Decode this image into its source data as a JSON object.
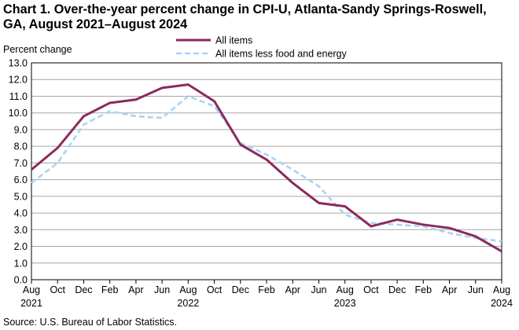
{
  "chart_data": {
    "type": "line",
    "title_line1": "Chart 1. Over-the-year percent change in CPI-U, Atlanta-Sandy Springs-Roswell,",
    "title_line2": "GA, August 2021–August 2024",
    "ylabel": "Percent change",
    "xlabel": "",
    "ylim": [
      0,
      13
    ],
    "yticks": [
      "0.0",
      "1.0",
      "2.0",
      "3.0",
      "4.0",
      "5.0",
      "6.0",
      "7.0",
      "8.0",
      "9.0",
      "10.0",
      "11.0",
      "12.0",
      "13.0"
    ],
    "xtick_labels": [
      "Aug",
      "Oct",
      "Dec",
      "Feb",
      "Apr",
      "Jun",
      "Aug",
      "Oct",
      "Dec",
      "Feb",
      "Apr",
      "Jun",
      "Aug",
      "Oct",
      "Dec",
      "Feb",
      "Apr",
      "Jun",
      "Aug"
    ],
    "year_labels": [
      {
        "tick_index": 0,
        "text": "2021"
      },
      {
        "tick_index": 6,
        "text": "2022"
      },
      {
        "tick_index": 12,
        "text": "2023"
      },
      {
        "tick_index": 18,
        "text": "2024"
      }
    ],
    "series": [
      {
        "name": "All items",
        "color": "#8b2a5b",
        "dashed": false,
        "values": [
          6.6,
          7.9,
          9.8,
          10.6,
          10.8,
          11.5,
          11.7,
          10.7,
          8.1,
          7.2,
          5.8,
          4.6,
          4.4,
          3.2,
          3.6,
          3.3,
          3.1,
          2.6,
          1.7
        ]
      },
      {
        "name": "All items less food and energy",
        "color": "#a9d3f5",
        "dashed": true,
        "values": [
          5.8,
          7.0,
          9.3,
          10.1,
          9.8,
          9.7,
          11.0,
          10.4,
          8.2,
          7.5,
          6.6,
          5.6,
          3.9,
          3.4,
          3.3,
          3.2,
          2.8,
          2.5,
          2.3
        ]
      }
    ],
    "legend_position": "top"
  },
  "source": "Source: U.S. Bureau of Labor Statistics."
}
